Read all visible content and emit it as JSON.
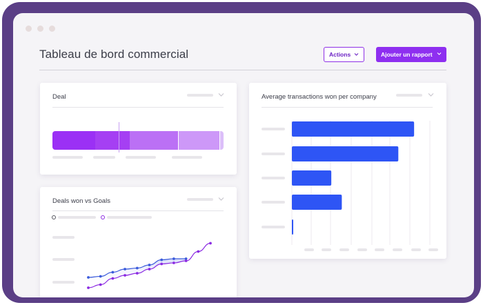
{
  "header": {
    "title": "Tableau de bord commercial",
    "actions_label": "Actions",
    "add_report_label": "Ajouter un rapport"
  },
  "colors": {
    "frame": "#5b3f86",
    "accent": "#8e2ff0",
    "bar_blue": "#2e55f5",
    "line_blue": "#3b5bdb",
    "line_purple": "#8b2be2"
  },
  "cards": {
    "deal": {
      "title": "Deal",
      "chart_data": {
        "type": "bar",
        "orientation": "stacked-horizontal",
        "values": [
          58,
          47,
          66,
          56,
          5
        ],
        "colors": [
          "#9b30f5",
          "#a53ff3",
          "#bb70f5",
          "#cd98f8",
          "#dcbff9"
        ]
      }
    },
    "goals": {
      "title": "Deals won vs Goals",
      "chart_data": {
        "type": "line",
        "series": [
          {
            "values": [
              1.0,
              1.1,
              1.5,
              1.8,
              1.9,
              2.2,
              2.7,
              2.8,
              2.8
            ]
          },
          {
            "values": [
              0.0,
              0.3,
              0.9,
              1.2,
              1.4,
              1.8,
              2.3,
              2.4,
              2.6,
              3.5,
              4.3
            ]
          }
        ]
      }
    },
    "avg": {
      "title": "Average transactions won per company",
      "chart_data": {
        "type": "bar",
        "orientation": "horizontal",
        "values": [
          186,
          162,
          60,
          76,
          2
        ],
        "xlim": [
          0,
          210
        ]
      }
    }
  }
}
